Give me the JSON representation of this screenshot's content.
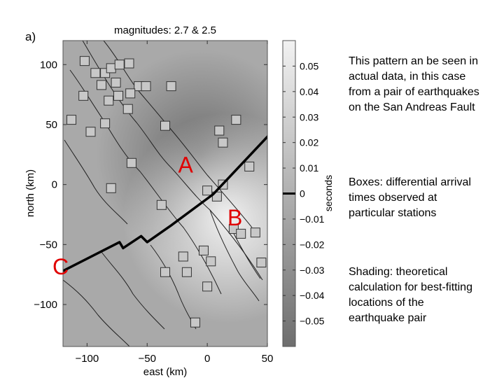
{
  "panel_label": "a)",
  "notes": [
    "This pattern an be seen in actual data, in this case from a pair of earthquakes on the San Andreas Fault",
    "Boxes: differential arrival times observed at particular stations",
    "Shading: theoretical calculation for best-fitting locations of the earthquake pair"
  ],
  "colors": {
    "map_background": "#a9a9a9",
    "shading_dark": "#6e6e6e",
    "shading_light": "#f2f2f2",
    "marker_fill": "#c8c8c8",
    "marker_stroke": "#333333",
    "path_line": "#000000",
    "point_labels": "#e00000"
  },
  "chart_data": {
    "type": "scatter",
    "title": "magnitudes: 2.7 & 2.5",
    "xlabel": "east (km)",
    "ylabel": "north (km)",
    "xlim": [
      -120,
      50
    ],
    "ylim": [
      -135,
      120
    ],
    "xticks": [
      -100,
      -50,
      0,
      50
    ],
    "xtick_labels": [
      "−100",
      "−50",
      "0",
      "50"
    ],
    "yticks": [
      100,
      50,
      0,
      -50,
      -100
    ],
    "ytick_labels": [
      "100",
      "50",
      "0",
      "−50",
      "−100"
    ],
    "colorbar": {
      "label": "seconds",
      "range": [
        -0.06,
        0.06
      ],
      "ticks": [
        0.05,
        0.04,
        0.03,
        0.02,
        0.01,
        0,
        -0.01,
        -0.02,
        -0.03,
        -0.04,
        -0.05
      ],
      "tick_labels": [
        "0.05",
        "0.04",
        "0.03",
        "0.02",
        "0.01",
        "0",
        "−0.01",
        "−0.02",
        "−0.03",
        "−0.04",
        "−0.05"
      ],
      "zero_marker": 0
    },
    "shading_extrema": {
      "low": {
        "x": -5,
        "y": 25,
        "value": -0.05
      },
      "high": {
        "x": 17,
        "y": -28,
        "value": 0.05
      }
    },
    "stations": [
      {
        "x": -102,
        "y": 103
      },
      {
        "x": -93,
        "y": 93
      },
      {
        "x": -85,
        "y": 93
      },
      {
        "x": -80,
        "y": 97
      },
      {
        "x": -73,
        "y": 100
      },
      {
        "x": -65,
        "y": 101
      },
      {
        "x": -88,
        "y": 83
      },
      {
        "x": -76,
        "y": 85
      },
      {
        "x": -57,
        "y": 82
      },
      {
        "x": -51,
        "y": 82
      },
      {
        "x": -30,
        "y": 82
      },
      {
        "x": -103,
        "y": 74
      },
      {
        "x": -82,
        "y": 70
      },
      {
        "x": -74,
        "y": 74
      },
      {
        "x": -64,
        "y": 76
      },
      {
        "x": -66,
        "y": 63
      },
      {
        "x": -113,
        "y": 54
      },
      {
        "x": -97,
        "y": 44
      },
      {
        "x": -85,
        "y": 51
      },
      {
        "x": -35,
        "y": 49
      },
      {
        "x": 10,
        "y": 45
      },
      {
        "x": 24,
        "y": 54
      },
      {
        "x": 13,
        "y": 35
      },
      {
        "x": -63,
        "y": 18
      },
      {
        "x": 35,
        "y": 15
      },
      {
        "x": -80,
        "y": -3
      },
      {
        "x": 13,
        "y": 0
      },
      {
        "x": 0,
        "y": -5
      },
      {
        "x": 8,
        "y": -10
      },
      {
        "x": -38,
        "y": -17
      },
      {
        "x": 22,
        "y": -37
      },
      {
        "x": 28,
        "y": -41
      },
      {
        "x": 40,
        "y": -40
      },
      {
        "x": -20,
        "y": -60
      },
      {
        "x": -3,
        "y": -55
      },
      {
        "x": 3,
        "y": -64
      },
      {
        "x": 45,
        "y": -65
      },
      {
        "x": -35,
        "y": -73
      },
      {
        "x": -17,
        "y": -73
      },
      {
        "x": 0,
        "y": -85
      },
      {
        "x": -10,
        "y": -115
      }
    ],
    "path_line": [
      {
        "x": -120,
        "y": -72
      },
      {
        "x": -73,
        "y": -48
      },
      {
        "x": -70,
        "y": -53
      },
      {
        "x": -55,
        "y": -43
      },
      {
        "x": -50,
        "y": -48
      },
      {
        "x": -30,
        "y": -34
      },
      {
        "x": 5,
        "y": -8
      },
      {
        "x": 52,
        "y": 42
      }
    ],
    "point_labels": [
      {
        "text": "A",
        "x": -18,
        "y": 15
      },
      {
        "text": "B",
        "x": 23,
        "y": -29
      },
      {
        "text": "C",
        "x": -122,
        "y": -70
      }
    ]
  }
}
